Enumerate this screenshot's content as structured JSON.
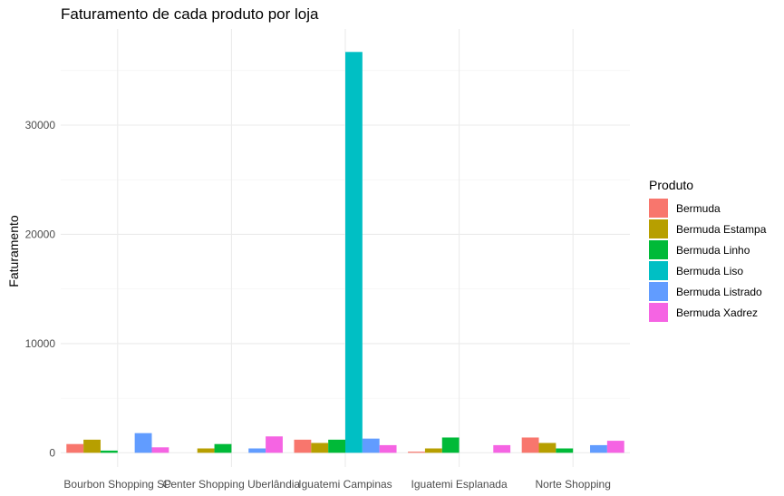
{
  "chart_data": {
    "type": "bar",
    "title": "Faturamento de cada produto por loja",
    "xlabel": "",
    "ylabel": "Faturamento",
    "categories": [
      "Bourbon Shopping SP",
      "Center Shopping Uberlândia",
      "Iguatemi Campinas",
      "Iguatemi Esplanada",
      "Norte Shopping"
    ],
    "yticks": [
      0,
      10000,
      20000,
      30000
    ],
    "ylim": [
      -1300,
      38800
    ],
    "grid": true,
    "legend_title": "Produto",
    "legend_position": "right",
    "series": [
      {
        "name": "Bermuda",
        "color": "#F8766D",
        "values": [
          800,
          0,
          1200,
          100,
          1400
        ]
      },
      {
        "name": "Bermuda Estampa",
        "color": "#B79F00",
        "values": [
          1200,
          400,
          900,
          400,
          900
        ]
      },
      {
        "name": "Bermuda Linho",
        "color": "#00BA38",
        "values": [
          200,
          800,
          1200,
          1400,
          400
        ]
      },
      {
        "name": "Bermuda Liso",
        "color": "#00BFC4",
        "values": [
          0,
          0,
          36700,
          0,
          0
        ]
      },
      {
        "name": "Bermuda Listrado",
        "color": "#619CFF",
        "values": [
          1800,
          400,
          1300,
          0,
          700
        ]
      },
      {
        "name": "Bermuda Xadrez",
        "color": "#F564E3",
        "values": [
          500,
          1500,
          700,
          700,
          1100
        ]
      }
    ]
  }
}
